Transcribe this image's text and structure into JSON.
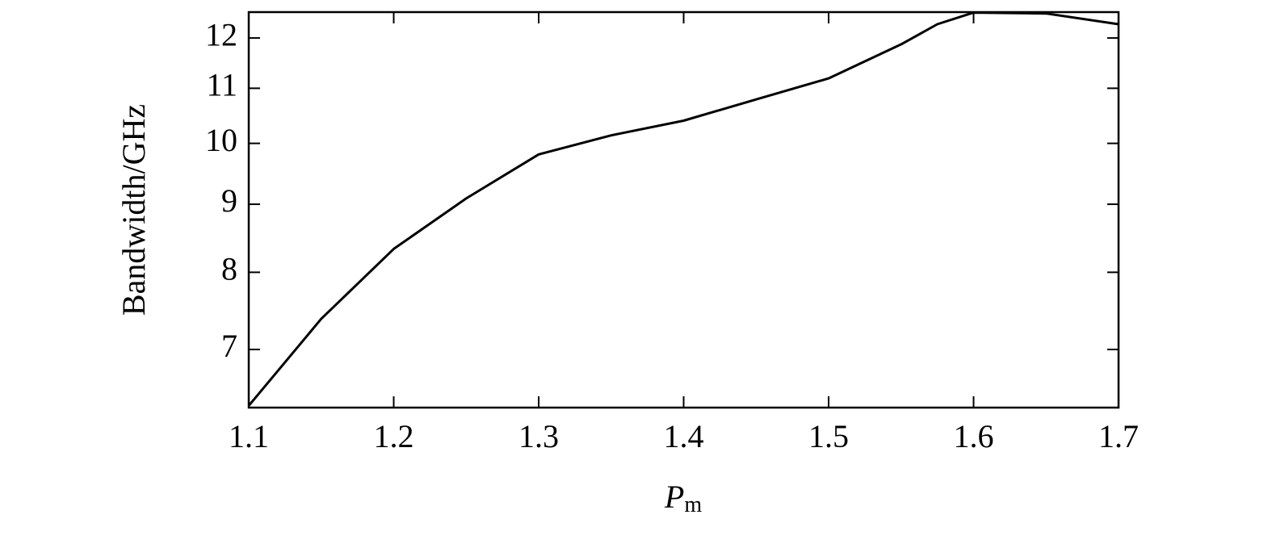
{
  "chart_data": {
    "type": "line",
    "y_label": "Bandwidth/GHz",
    "x_label": {
      "main": "P",
      "sub": "m"
    },
    "x": [
      1.1,
      1.15,
      1.2,
      1.25,
      1.3,
      1.35,
      1.4,
      1.45,
      1.5,
      1.55,
      1.575,
      1.6,
      1.65,
      1.7
    ],
    "series": [
      {
        "color": "#000000",
        "values": [
          6.35,
          7.38,
          8.33,
          9.09,
          9.81,
          10.14,
          10.4,
          10.79,
          11.19,
          11.87,
          12.29,
          12.54,
          12.52,
          12.29
        ]
      }
    ],
    "xlim": [
      1.1,
      1.7
    ],
    "xticks": [
      1.1,
      1.2,
      1.3,
      1.4,
      1.5,
      1.6,
      1.7
    ],
    "ylim": [
      6.33,
      12.55
    ],
    "yticks": [
      7,
      8,
      9,
      10,
      11,
      12
    ],
    "ylog": true,
    "grid": false
  }
}
